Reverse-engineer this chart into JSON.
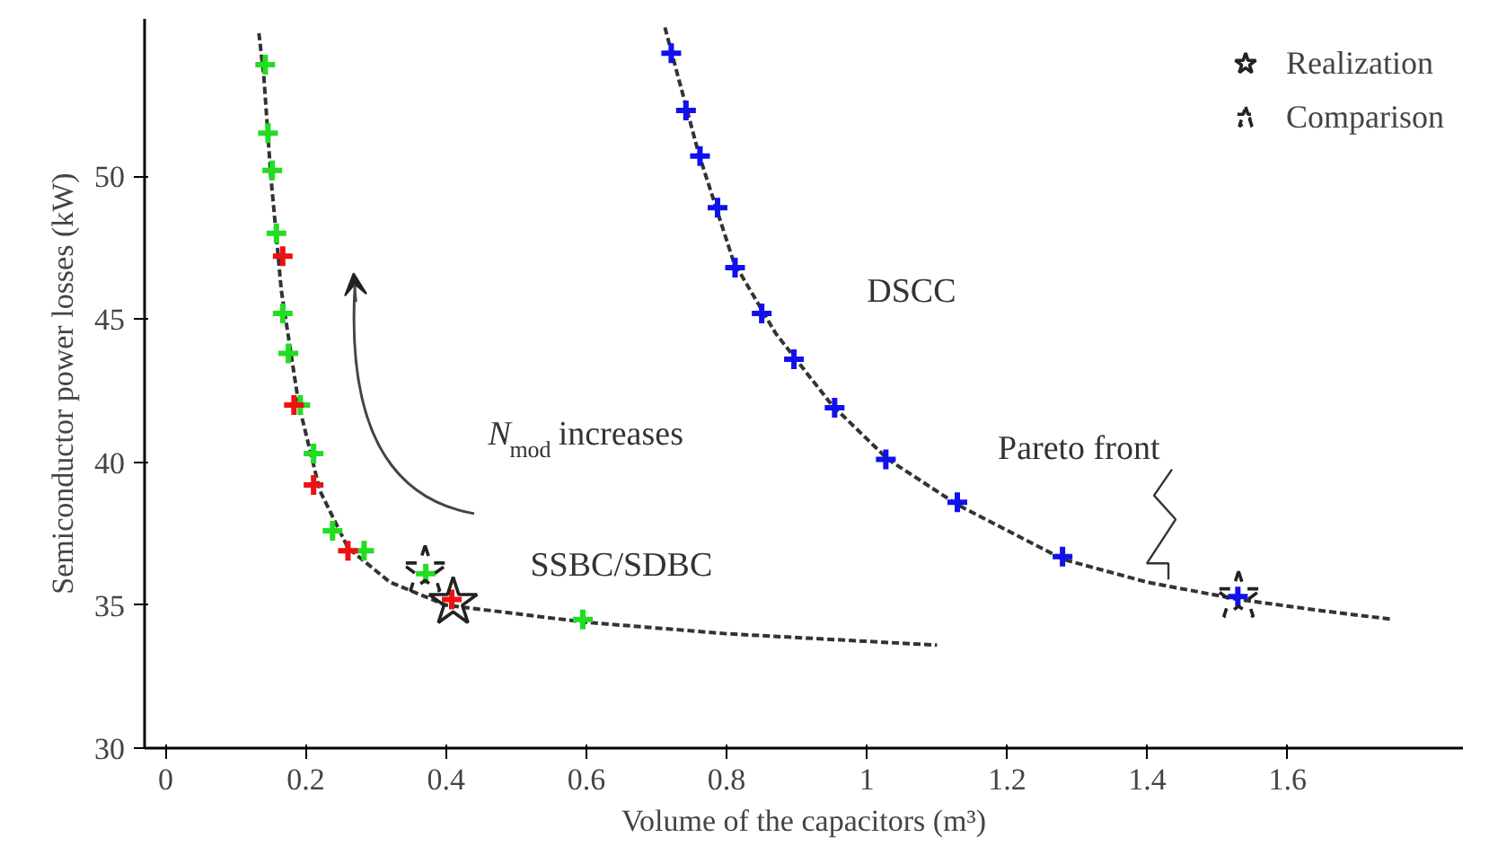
{
  "chart_data": {
    "type": "scatter",
    "xlabel": "Volume of the capacitors (m³)",
    "ylabel": "Semiconductor power losses (kW)",
    "xlim": [
      -0.03,
      1.85
    ],
    "ylim": [
      30,
      55.5
    ],
    "xticks": [
      0,
      0.2,
      0.4,
      0.6,
      0.8,
      1,
      1.2,
      1.4,
      1.6
    ],
    "yticks": [
      30,
      35,
      40,
      45,
      50
    ],
    "grid": false,
    "legend": "top right",
    "series": [
      {
        "type": "line",
        "marker": "none",
        "line_style": "dashed",
        "color": "#333333",
        "x": [
          0.133,
          0.14,
          0.15,
          0.165,
          0.19,
          0.22,
          0.26,
          0.32,
          0.4,
          0.5,
          0.6,
          0.8,
          1.1
        ],
        "values": [
          55,
          53.5,
          50,
          46,
          42,
          39,
          37,
          35.8,
          35.0,
          34.7,
          34.4,
          34.0,
          33.6
        ]
      },
      {
        "type": "line",
        "marker": "none",
        "line_style": "dashed",
        "color": "#333333",
        "x": [
          0.712,
          0.76,
          0.81,
          0.87,
          0.95,
          1.03,
          1.13,
          1.28,
          1.4,
          1.53,
          1.65,
          1.75
        ],
        "values": [
          55.2,
          50.8,
          47,
          44.5,
          42,
          40.1,
          38.5,
          36.6,
          35.8,
          35.2,
          34.8,
          34.5
        ]
      },
      {
        "marker": "cross",
        "color": "#22dd22",
        "x": [
          0.142,
          0.146,
          0.152,
          0.158,
          0.167,
          0.175,
          0.192,
          0.211,
          0.238,
          0.283,
          0.371,
          0.595
        ],
        "values": [
          53.9,
          51.5,
          50.2,
          48.0,
          45.2,
          43.8,
          42.0,
          40.3,
          37.6,
          36.9,
          36.1,
          34.5
        ]
      },
      {
        "marker": "cross",
        "color": "#ee1111",
        "x": [
          0.167,
          0.183,
          0.211,
          0.26,
          0.408
        ],
        "values": [
          47.2,
          42.0,
          39.2,
          36.9,
          35.2
        ]
      },
      {
        "marker": "cross",
        "color": "#1111ee",
        "x": [
          0.721,
          0.742,
          0.762,
          0.787,
          0.812,
          0.85,
          0.896,
          0.954,
          1.027,
          1.129,
          1.279,
          1.529
        ],
        "values": [
          54.3,
          52.3,
          50.7,
          48.9,
          46.8,
          45.2,
          43.6,
          41.9,
          40.1,
          38.6,
          36.7,
          35.3
        ]
      },
      {
        "name": "Realization",
        "marker": "star",
        "line_style": "solid",
        "color": "#222222",
        "x": [
          0.41
        ],
        "values": [
          35.1
        ]
      },
      {
        "name": "Comparison",
        "marker": "star",
        "line_style": "dashed",
        "color": "#222222",
        "x": [
          0.37,
          1.53
        ],
        "values": [
          36.2,
          35.3
        ]
      }
    ],
    "annotations": [
      "N$_{mod}$ increases",
      "SSBC/SDBC",
      "DSCC",
      {
        "text": "Pareto front",
        "x": 1.43,
        "y": 35.9
      }
    ]
  }
}
